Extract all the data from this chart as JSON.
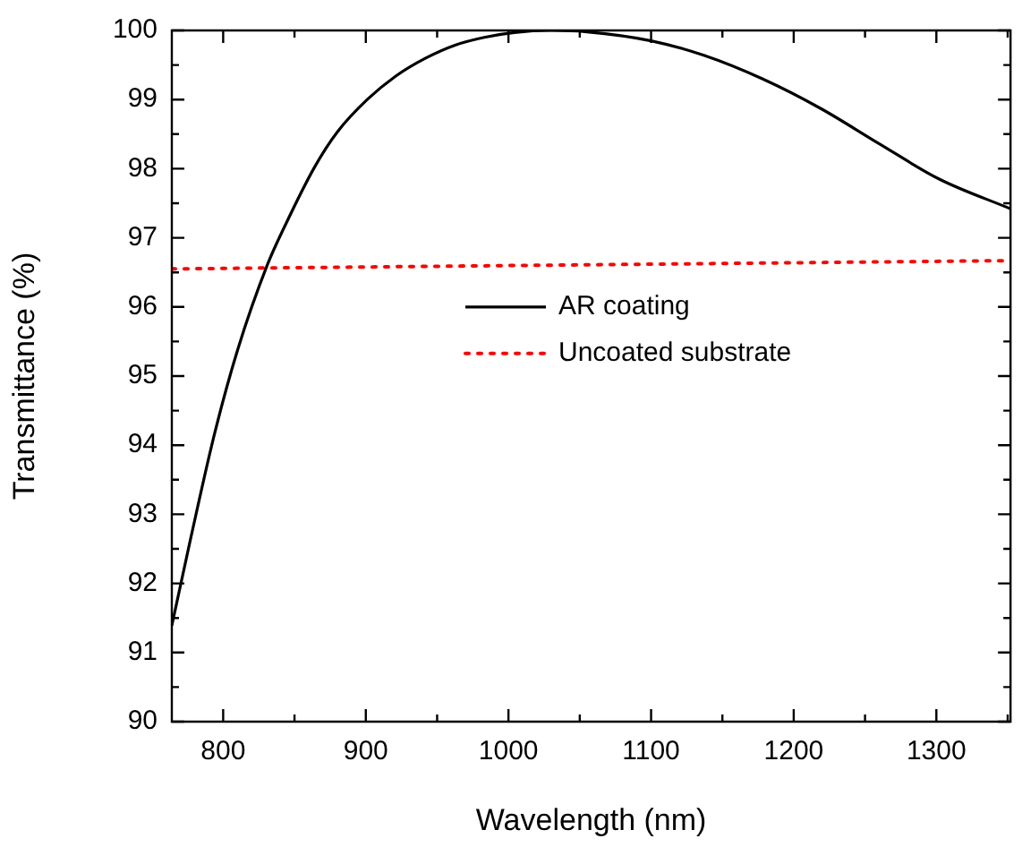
{
  "chart_data": {
    "type": "line",
    "xlabel": "Wavelength (nm)",
    "ylabel": "Transmittance (%)",
    "xlim": [
      764,
      1352
    ],
    "ylim": [
      90,
      100
    ],
    "xticks": [
      {
        "value": 800,
        "label": "800"
      },
      {
        "value": 850,
        "label": null
      },
      {
        "value": 900,
        "label": "900"
      },
      {
        "value": 950,
        "label": null
      },
      {
        "value": 1000,
        "label": "1000"
      },
      {
        "value": 1050,
        "label": null
      },
      {
        "value": 1100,
        "label": "1100"
      },
      {
        "value": 1150,
        "label": null
      },
      {
        "value": 1200,
        "label": "1200"
      },
      {
        "value": 1250,
        "label": null
      },
      {
        "value": 1300,
        "label": "1300"
      },
      {
        "value": 1350,
        "label": null
      }
    ],
    "yticks": [
      90,
      {
        "value": 90.5,
        "label": null
      },
      91,
      {
        "value": 91.5,
        "label": null
      },
      92,
      {
        "value": 92.5,
        "label": null
      },
      93,
      {
        "value": 93.5,
        "label": null
      },
      94,
      {
        "value": 94.5,
        "label": null
      },
      95,
      {
        "value": 95.5,
        "label": null
      },
      96,
      {
        "value": 96.5,
        "label": null
      },
      97,
      {
        "value": 97.5,
        "label": null
      },
      98,
      {
        "value": 98.5,
        "label": null
      },
      99,
      {
        "value": 99.5,
        "label": null
      },
      100
    ],
    "grid": false,
    "legend": "center",
    "marker": "none",
    "series": [
      {
        "name": "AR coating",
        "color": "#000000",
        "line_style": "solid",
        "x": [
          764,
          777,
          794,
          810,
          831,
          843,
          864,
          880,
          901,
          921,
          942,
          963,
          983,
          1004,
          1030,
          1055,
          1100,
          1137,
          1178,
          1219,
          1260,
          1302,
          1352
        ],
        "values": [
          91.39,
          92.63,
          94.17,
          95.37,
          96.61,
          97.16,
          98.02,
          98.53,
          99.0,
          99.34,
          99.6,
          99.79,
          99.9,
          99.97,
          100.0,
          99.98,
          99.85,
          99.64,
          99.3,
          98.87,
          98.36,
          97.85,
          97.42
        ]
      },
      {
        "name": "Uncoated substrate",
        "color": "#ff0000",
        "line_style": "dotted",
        "x": [
          764,
          1352
        ],
        "values": [
          96.55,
          96.67
        ]
      }
    ]
  }
}
